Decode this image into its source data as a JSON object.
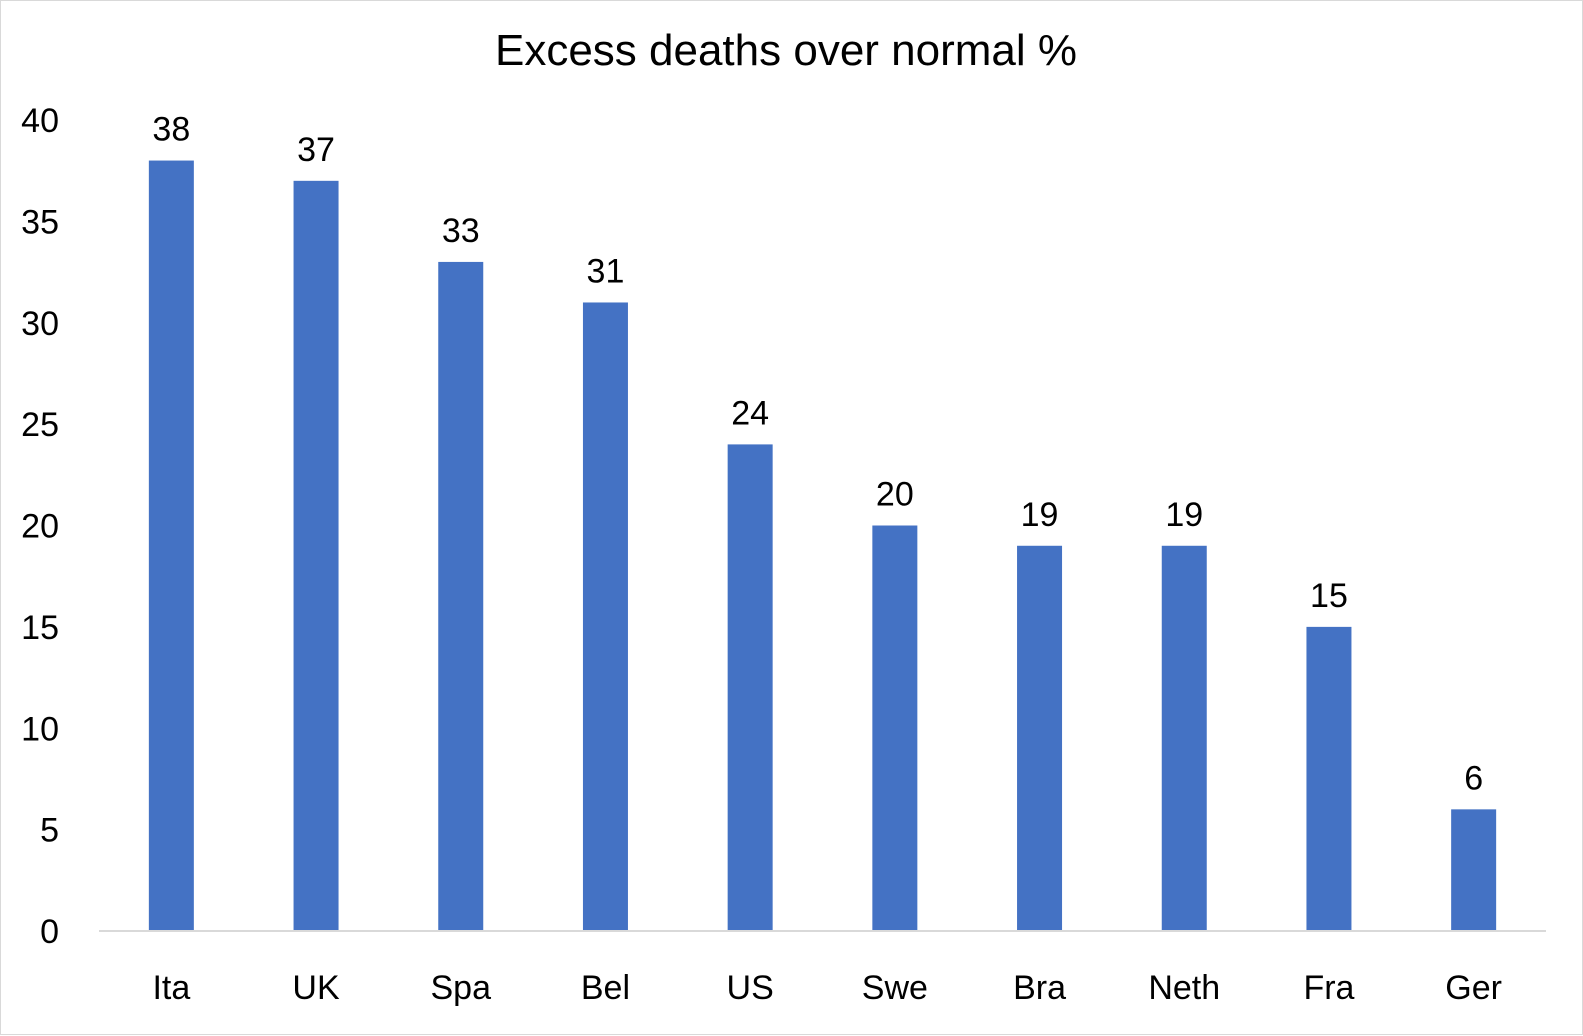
{
  "chart_data": {
    "type": "bar",
    "title": "Excess deaths over normal %",
    "xlabel": "",
    "ylabel": "",
    "categories": [
      "Ita",
      "UK",
      "Spa",
      "Bel",
      "US",
      "Swe",
      "Bra",
      "Neth",
      "Fra",
      "Ger"
    ],
    "values": [
      38,
      37,
      33,
      31,
      24,
      20,
      19,
      19,
      15,
      6
    ],
    "ylim": [
      0,
      40
    ],
    "yticks": [
      0,
      5,
      10,
      15,
      20,
      25,
      30,
      35,
      40
    ],
    "grid": false,
    "legend": "none",
    "data_labels": true,
    "bar_color": "#4472C4"
  }
}
